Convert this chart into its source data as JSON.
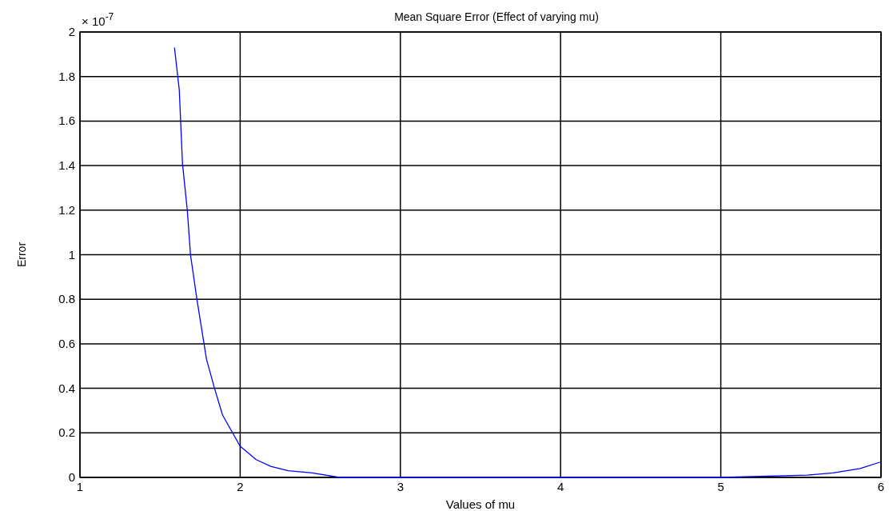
{
  "chart_data": {
    "type": "line",
    "title": "Mean Square Error (Effect of varying mu)",
    "xlabel": "Values of mu",
    "ylabel": "Error",
    "annotations": [
      "× 10$^{-7}$"
    ],
    "xlim": [
      1,
      6
    ],
    "xticks": [
      1,
      2,
      3,
      4,
      5,
      6
    ],
    "ylim": [
      0,
      2
    ],
    "yticks": [
      0,
      0.2,
      0.4,
      0.6,
      0.8,
      1,
      1.2,
      1.4,
      1.6,
      1.8,
      2
    ],
    "grid": true,
    "series": [
      {
        "color": "#0000ff",
        "x": [
          1.59,
          1.62,
          1.64,
          1.67,
          1.69,
          1.73,
          1.79,
          1.84,
          1.89,
          2,
          2.1,
          2.19,
          2.3,
          2.45,
          2.62,
          5,
          5.54,
          5.7,
          5.87,
          6
        ],
        "values": [
          1.93,
          1.74,
          1.41,
          1.2,
          1,
          0.8,
          0.53,
          0.4,
          0.28,
          0.14,
          0.08,
          0.05,
          0.03,
          0.02,
          0,
          0,
          0.01,
          0.02,
          0.04,
          0.07
        ]
      }
    ]
  }
}
